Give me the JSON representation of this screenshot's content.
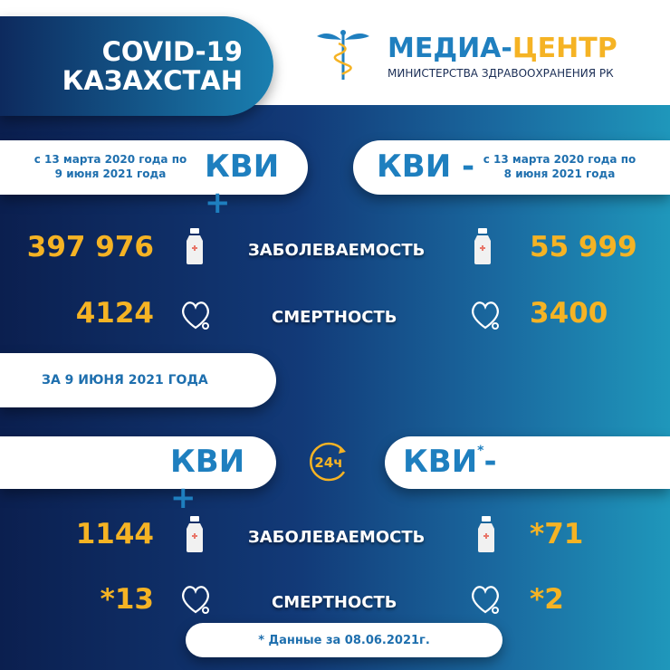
{
  "header": {
    "title_line1": "COVID-19",
    "title_line2": "КАЗАХСТАН",
    "brand_part1": "МЕДИА-",
    "brand_part2": "ЦЕНТР",
    "brand_subtitle": "МИНИСТЕРСТВА ЗДРАВООХРАНЕНИЯ РК",
    "logo_icon": "caduceus-icon"
  },
  "cumulative": {
    "left": {
      "period_line1": "с 13 марта 2020 года по",
      "period_line2": "9 июня 2021 года",
      "label": "КВИ +",
      "cases": "397 976",
      "deaths": "4124"
    },
    "right": {
      "period_line1": "с 13 марта 2020 года по",
      "period_line2": "8 июня 2021 года",
      "label": "КВИ -",
      "cases": "55 999",
      "deaths": "3400"
    },
    "cases_label": "ЗАБОЛЕВАЕМОСТЬ",
    "deaths_label": "СМЕРТНОСТЬ"
  },
  "daily": {
    "date_label": "ЗА 9 ИЮНЯ 2021 ГОДА",
    "clock_label": "24ч",
    "left": {
      "label": "КВИ +",
      "cases": "1144",
      "deaths": "*13"
    },
    "right": {
      "label": "КВИ",
      "asterisk": "*",
      "suffix": "-",
      "cases": "*71",
      "deaths": "*2"
    },
    "cases_label": "ЗАБОЛЕВАЕМОСТЬ",
    "deaths_label": "СМЕРТНОСТЬ"
  },
  "footnote": "* Данные за 08.06.2021г.",
  "colors": {
    "accent_yellow": "#f5b324",
    "brand_blue": "#1e7fbf",
    "navy": "#0b1f4f",
    "teal": "#1f97bb"
  }
}
